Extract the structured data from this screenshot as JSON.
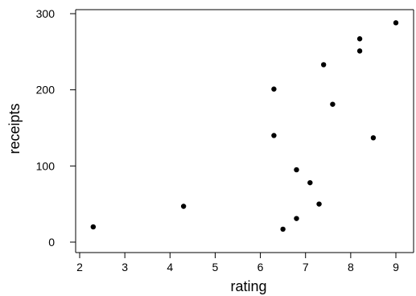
{
  "chart_data": {
    "type": "scatter",
    "xlabel": "rating",
    "ylabel": "receipts",
    "xlim": [
      1.9,
      9.2
    ],
    "ylim": [
      -10,
      305
    ],
    "x_ticks": [
      2,
      3,
      4,
      5,
      6,
      7,
      8,
      9
    ],
    "y_ticks": [
      0,
      100,
      200,
      300
    ],
    "grid": false,
    "legend": "none",
    "point_color": "#000000",
    "points": [
      {
        "x": 2.3,
        "y": 20
      },
      {
        "x": 4.3,
        "y": 47
      },
      {
        "x": 6.3,
        "y": 140
      },
      {
        "x": 6.3,
        "y": 201
      },
      {
        "x": 6.5,
        "y": 17
      },
      {
        "x": 6.8,
        "y": 31
      },
      {
        "x": 6.8,
        "y": 95
      },
      {
        "x": 7.1,
        "y": 78
      },
      {
        "x": 7.3,
        "y": 50
      },
      {
        "x": 7.4,
        "y": 233
      },
      {
        "x": 7.6,
        "y": 181
      },
      {
        "x": 8.2,
        "y": 251
      },
      {
        "x": 8.2,
        "y": 267
      },
      {
        "x": 8.5,
        "y": 137
      },
      {
        "x": 9.0,
        "y": 288
      }
    ]
  }
}
